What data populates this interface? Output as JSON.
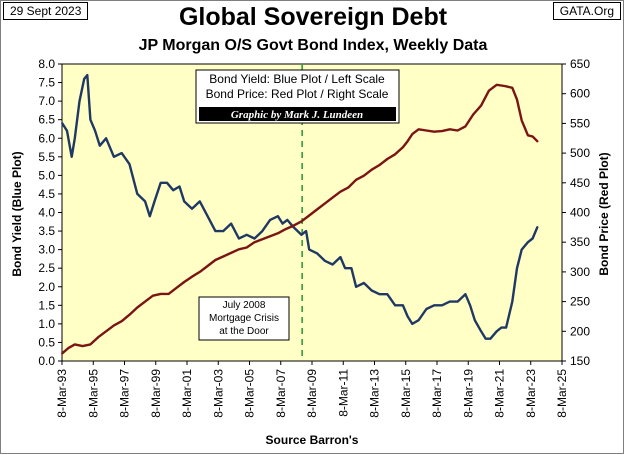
{
  "header": {
    "date": "29 Sept 2023",
    "source_badge": "GATA.Org"
  },
  "chart_data": {
    "type": "line",
    "title": "Global Sovereign Debt",
    "subtitle": "JP Morgan O/S Govt Bond Index, Weekly Data",
    "xlabel": "Source Barron's",
    "ylabel_left": "Bond Yield (Blue Plot)",
    "ylabel_right": "Bond Price (Red Plot)",
    "x_ticks": [
      "8-Mar-93",
      "8-Mar-95",
      "8-Mar-97",
      "8-Mar-99",
      "8-Mar-01",
      "8-Mar-03",
      "8-Mar-05",
      "8-Mar-07",
      "8-Mar-09",
      "8-Mar-11",
      "8-Mar-13",
      "8-Mar-15",
      "8-Mar-17",
      "8-Mar-19",
      "8-Mar-21",
      "8-Mar-23",
      "8-Mar-25"
    ],
    "x_range": [
      1993.18,
      2025.18
    ],
    "y_left_ticks": [
      "0.0",
      "0.5",
      "1.0",
      "1.5",
      "2.0",
      "2.5",
      "3.0",
      "3.5",
      "4.0",
      "4.5",
      "5.0",
      "5.5",
      "6.0",
      "6.5",
      "7.0",
      "7.5",
      "8.0"
    ],
    "y_left_range": [
      0,
      8
    ],
    "y_right_ticks": [
      "150",
      "200",
      "250",
      "300",
      "350",
      "400",
      "450",
      "500",
      "550",
      "600",
      "650"
    ],
    "y_right_range": [
      150,
      650
    ],
    "grid": false,
    "legend": {
      "line1": "Bond Yield: Blue Plot / Left Scale",
      "line2": "Bond Price: Red Plot / Right Scale",
      "credit": "Graphic by Mark J. Lundeen"
    },
    "annotation": {
      "line1": "July 2008",
      "line2": "Mortgage Crisis",
      "line3": "at the Door",
      "x": 2008.55
    },
    "series": [
      {
        "name": "Bond Yield",
        "axis": "left",
        "color": "#1f3864",
        "x": [
          1993.2,
          1993.5,
          1993.8,
          1994.0,
          1994.3,
          1994.6,
          1994.8,
          1995.0,
          1995.3,
          1995.6,
          1996.0,
          1996.5,
          1997.0,
          1997.5,
          1998.0,
          1998.5,
          1998.8,
          1999.1,
          1999.5,
          1999.9,
          2000.3,
          2000.7,
          2001.0,
          2001.5,
          2002.0,
          2002.5,
          2003.0,
          2003.5,
          2004.0,
          2004.5,
          2005.0,
          2005.5,
          2006.0,
          2006.5,
          2007.0,
          2007.3,
          2007.6,
          2008.0,
          2008.5,
          2008.8,
          2009.0,
          2009.5,
          2010.0,
          2010.5,
          2011.0,
          2011.3,
          2011.7,
          2012.0,
          2012.5,
          2013.0,
          2013.5,
          2014.0,
          2014.5,
          2015.0,
          2015.3,
          2015.6,
          2016.0,
          2016.5,
          2017.0,
          2017.5,
          2018.0,
          2018.5,
          2019.0,
          2019.3,
          2019.6,
          2020.0,
          2020.3,
          2020.6,
          2021.0,
          2021.3,
          2021.6,
          2022.0,
          2022.3,
          2022.6,
          2023.0,
          2023.3,
          2023.6
        ],
        "y": [
          6.4,
          6.2,
          5.5,
          6.0,
          7.0,
          7.6,
          7.7,
          6.5,
          6.2,
          5.8,
          6.0,
          5.5,
          5.6,
          5.3,
          4.5,
          4.3,
          3.9,
          4.3,
          4.8,
          4.8,
          4.6,
          4.7,
          4.3,
          4.1,
          4.3,
          3.9,
          3.5,
          3.5,
          3.7,
          3.3,
          3.4,
          3.3,
          3.5,
          3.8,
          3.9,
          3.7,
          3.8,
          3.6,
          3.4,
          3.5,
          3.0,
          2.9,
          2.7,
          2.6,
          2.8,
          2.5,
          2.5,
          2.0,
          2.1,
          1.9,
          1.8,
          1.8,
          1.5,
          1.5,
          1.2,
          1.0,
          1.1,
          1.4,
          1.5,
          1.5,
          1.6,
          1.6,
          1.8,
          1.5,
          1.1,
          0.8,
          0.6,
          0.6,
          0.8,
          0.9,
          0.9,
          1.6,
          2.5,
          3.0,
          3.2,
          3.3,
          3.6
        ]
      },
      {
        "name": "Bond Price",
        "axis": "right",
        "color": "#7b1414",
        "x": [
          1993.2,
          1993.6,
          1994.0,
          1994.5,
          1995.0,
          1995.5,
          1996.0,
          1996.5,
          1997.0,
          1997.5,
          1998.0,
          1998.5,
          1999.0,
          1999.5,
          2000.0,
          2000.5,
          2001.0,
          2001.5,
          2002.0,
          2002.5,
          2003.0,
          2003.5,
          2004.0,
          2004.5,
          2005.0,
          2005.5,
          2006.0,
          2006.5,
          2007.0,
          2007.5,
          2008.0,
          2008.5,
          2009.0,
          2009.5,
          2010.0,
          2010.5,
          2011.0,
          2011.5,
          2012.0,
          2012.5,
          2013.0,
          2013.5,
          2014.0,
          2014.5,
          2015.0,
          2015.3,
          2015.6,
          2016.0,
          2016.5,
          2017.0,
          2017.5,
          2018.0,
          2018.5,
          2019.0,
          2019.5,
          2020.0,
          2020.5,
          2021.0,
          2021.5,
          2022.0,
          2022.3,
          2022.6,
          2023.0,
          2023.3,
          2023.6
        ],
        "y": [
          163,
          172,
          178,
          175,
          178,
          190,
          200,
          210,
          217,
          228,
          240,
          250,
          260,
          263,
          263,
          273,
          283,
          292,
          300,
          310,
          320,
          326,
          332,
          338,
          341,
          350,
          355,
          360,
          365,
          372,
          378,
          385,
          395,
          405,
          415,
          425,
          435,
          442,
          455,
          462,
          472,
          480,
          490,
          498,
          510,
          520,
          532,
          540,
          538,
          536,
          537,
          540,
          538,
          545,
          565,
          580,
          605,
          615,
          613,
          610,
          590,
          555,
          530,
          528,
          520
        ]
      }
    ]
  }
}
